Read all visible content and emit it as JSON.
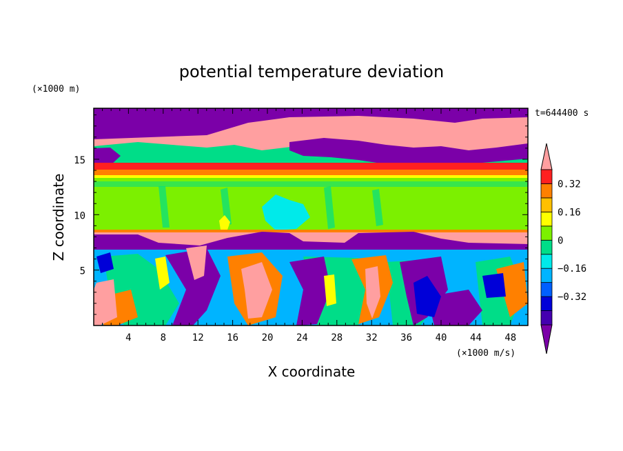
{
  "chart_data": {
    "type": "heatmap",
    "title": "potential temperature deviation",
    "xlabel": "X coordinate",
    "ylabel": "Z coordinate",
    "x_unit": "(×1000 m/s)",
    "y_unit": "(×1000 m)",
    "time_label": "t=644400 s",
    "xlim": [
      0,
      50
    ],
    "ylim": [
      0,
      19.6
    ],
    "xticks": [
      "4",
      "8",
      "12",
      "16",
      "20",
      "24",
      "28",
      "32",
      "36",
      "40",
      "44",
      "48"
    ],
    "yticks": [
      "5",
      "10",
      "15"
    ],
    "colorbar": {
      "levels": [
        -0.48,
        -0.4,
        -0.32,
        -0.24,
        -0.16,
        -0.08,
        0,
        0.08,
        0.16,
        0.24,
        0.32,
        0.4,
        0.48
      ],
      "colors": [
        "#7b00a8",
        "#4400b0",
        "#0000d8",
        "#005fff",
        "#00b4ff",
        "#00eaea",
        "#00dd88",
        "#7cf000",
        "#ffff00",
        "#ffc000",
        "#ff8000",
        "#ff2020",
        "#ff9fa0"
      ],
      "tick_labels": [
        "0.32",
        "0.16",
        "0",
        "−0.16",
        "−0.32"
      ]
    }
  }
}
